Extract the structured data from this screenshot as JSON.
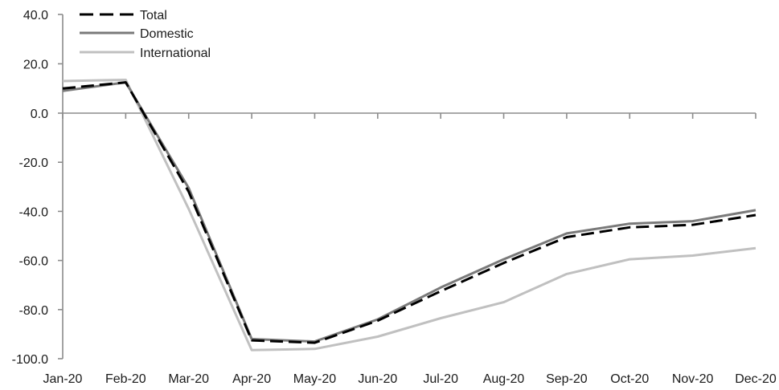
{
  "chart_data": {
    "type": "line",
    "title": "",
    "xlabel": "",
    "ylabel": "",
    "categories": [
      "Jan-20",
      "Feb-20",
      "Mar-20",
      "Apr-20",
      "May-20",
      "Jun-20",
      "Jul-20",
      "Aug-20",
      "Sep-20",
      "Oct-20",
      "Nov-20",
      "Dec-20"
    ],
    "ylim": [
      -100,
      40
    ],
    "yticks": [
      "40.0",
      "20.0",
      "0.0",
      "-20.0",
      "-40.0",
      "-60.0",
      "-80.0",
      "-100.0"
    ],
    "grid": false,
    "legend_position": "top-left",
    "series": [
      {
        "name": "Total",
        "color": "#000000",
        "dash": "dashed",
        "values": [
          10.0,
          12.5,
          -32.0,
          -92.5,
          -93.5,
          -84.5,
          -72.5,
          -61.0,
          -50.5,
          -46.5,
          -45.5,
          -41.5
        ]
      },
      {
        "name": "Domestic",
        "color": "#7a7a7a",
        "dash": "solid",
        "values": [
          9.0,
          12.5,
          -30.5,
          -92.0,
          -93.0,
          -84.0,
          -71.0,
          -59.5,
          -49.0,
          -45.0,
          -44.0,
          -39.5
        ]
      },
      {
        "name": "International",
        "color": "#c0c0c0",
        "dash": "solid",
        "values": [
          13.0,
          13.5,
          -39.0,
          -96.5,
          -96.0,
          -91.0,
          -83.5,
          -77.0,
          -65.5,
          -59.5,
          -58.0,
          -55.0
        ]
      }
    ]
  }
}
